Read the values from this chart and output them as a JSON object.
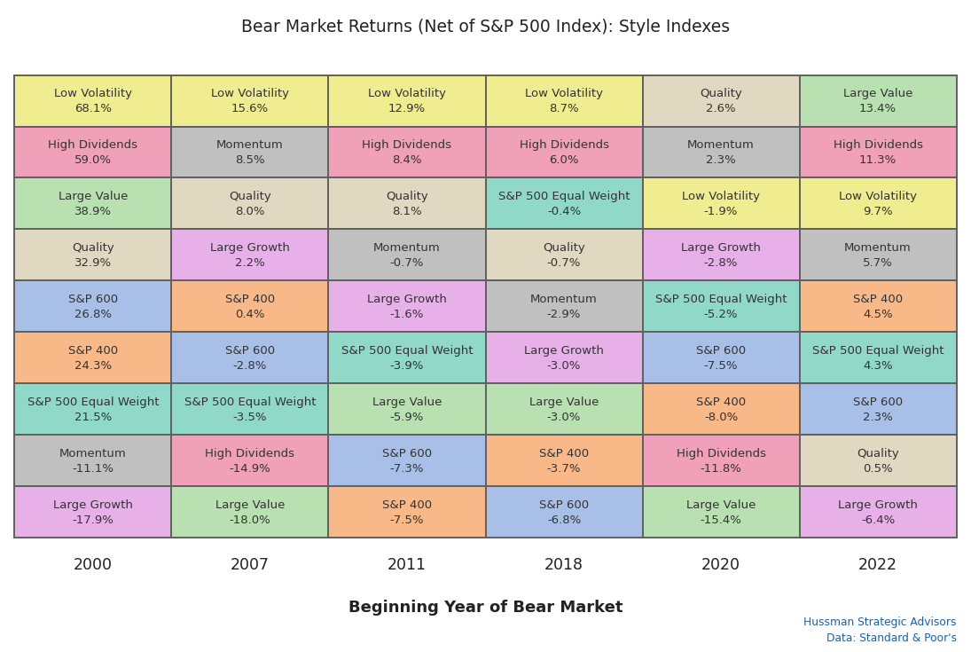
{
  "title": "Bear Market Returns (Net of S&P 500 Index): Style Indexes",
  "xlabel": "Beginning Year of Bear Market",
  "years": [
    "2000",
    "2007",
    "2011",
    "2018",
    "2020",
    "2022"
  ],
  "grid": [
    [
      {
        "label": "Low Volatility",
        "value": "68.1%",
        "color": "#f0ec90"
      },
      {
        "label": "Low Volatility",
        "value": "15.6%",
        "color": "#f0ec90"
      },
      {
        "label": "Low Volatility",
        "value": "12.9%",
        "color": "#f0ec90"
      },
      {
        "label": "Low Volatility",
        "value": "8.7%",
        "color": "#f0ec90"
      },
      {
        "label": "Quality",
        "value": "2.6%",
        "color": "#e0d8c0"
      },
      {
        "label": "Large Value",
        "value": "13.4%",
        "color": "#b8e0b0"
      }
    ],
    [
      {
        "label": "High Dividends",
        "value": "59.0%",
        "color": "#f0a0b8"
      },
      {
        "label": "Momentum",
        "value": "8.5%",
        "color": "#c0c0c0"
      },
      {
        "label": "High Dividends",
        "value": "8.4%",
        "color": "#f0a0b8"
      },
      {
        "label": "High Dividends",
        "value": "6.0%",
        "color": "#f0a0b8"
      },
      {
        "label": "Momentum",
        "value": "2.3%",
        "color": "#c0c0c0"
      },
      {
        "label": "High Dividends",
        "value": "11.3%",
        "color": "#f0a0b8"
      }
    ],
    [
      {
        "label": "Large Value",
        "value": "38.9%",
        "color": "#b8e0b0"
      },
      {
        "label": "Quality",
        "value": "8.0%",
        "color": "#e0d8c0"
      },
      {
        "label": "Quality",
        "value": "8.1%",
        "color": "#e0d8c0"
      },
      {
        "label": "S&P 500 Equal Weight",
        "value": "-0.4%",
        "color": "#90d8c8"
      },
      {
        "label": "Low Volatility",
        "value": "-1.9%",
        "color": "#f0ec90"
      },
      {
        "label": "Low Volatility",
        "value": "9.7%",
        "color": "#f0ec90"
      }
    ],
    [
      {
        "label": "Quality",
        "value": "32.9%",
        "color": "#e0d8c0"
      },
      {
        "label": "Large Growth",
        "value": "2.2%",
        "color": "#e8b0e8"
      },
      {
        "label": "Momentum",
        "value": "-0.7%",
        "color": "#c0c0c0"
      },
      {
        "label": "Quality",
        "value": "-0.7%",
        "color": "#e0d8c0"
      },
      {
        "label": "Large Growth",
        "value": "-2.8%",
        "color": "#e8b0e8"
      },
      {
        "label": "Momentum",
        "value": "5.7%",
        "color": "#c0c0c0"
      }
    ],
    [
      {
        "label": "S&P 600",
        "value": "26.8%",
        "color": "#a8c0e8"
      },
      {
        "label": "S&P 400",
        "value": "0.4%",
        "color": "#f8b888"
      },
      {
        "label": "Large Growth",
        "value": "-1.6%",
        "color": "#e8b0e8"
      },
      {
        "label": "Momentum",
        "value": "-2.9%",
        "color": "#c0c0c0"
      },
      {
        "label": "S&P 500 Equal Weight",
        "value": "-5.2%",
        "color": "#90d8c8"
      },
      {
        "label": "S&P 400",
        "value": "4.5%",
        "color": "#f8b888"
      }
    ],
    [
      {
        "label": "S&P 400",
        "value": "24.3%",
        "color": "#f8b888"
      },
      {
        "label": "S&P 600",
        "value": "-2.8%",
        "color": "#a8c0e8"
      },
      {
        "label": "S&P 500 Equal Weight",
        "value": "-3.9%",
        "color": "#90d8c8"
      },
      {
        "label": "Large Growth",
        "value": "-3.0%",
        "color": "#e8b0e8"
      },
      {
        "label": "S&P 600",
        "value": "-7.5%",
        "color": "#a8c0e8"
      },
      {
        "label": "S&P 500 Equal Weight",
        "value": "4.3%",
        "color": "#90d8c8"
      }
    ],
    [
      {
        "label": "S&P 500 Equal Weight",
        "value": "21.5%",
        "color": "#90d8c8"
      },
      {
        "label": "S&P 500 Equal Weight",
        "value": "-3.5%",
        "color": "#90d8c8"
      },
      {
        "label": "Large Value",
        "value": "-5.9%",
        "color": "#b8e0b0"
      },
      {
        "label": "Large Value",
        "value": "-3.0%",
        "color": "#b8e0b0"
      },
      {
        "label": "S&P 400",
        "value": "-8.0%",
        "color": "#f8b888"
      },
      {
        "label": "S&P 600",
        "value": "2.3%",
        "color": "#a8c0e8"
      }
    ],
    [
      {
        "label": "Momentum",
        "value": "-11.1%",
        "color": "#c0c0c0"
      },
      {
        "label": "High Dividends",
        "value": "-14.9%",
        "color": "#f0a0b8"
      },
      {
        "label": "S&P 600",
        "value": "-7.3%",
        "color": "#a8c0e8"
      },
      {
        "label": "S&P 400",
        "value": "-3.7%",
        "color": "#f8b888"
      },
      {
        "label": "High Dividends",
        "value": "-11.8%",
        "color": "#f0a0b8"
      },
      {
        "label": "Quality",
        "value": "0.5%",
        "color": "#e0d8c0"
      }
    ],
    [
      {
        "label": "Large Growth",
        "value": "-17.9%",
        "color": "#e8b0e8"
      },
      {
        "label": "Large Value",
        "value": "-18.0%",
        "color": "#b8e0b0"
      },
      {
        "label": "S&P 400",
        "value": "-7.5%",
        "color": "#f8b888"
      },
      {
        "label": "S&P 600",
        "value": "-6.8%",
        "color": "#a8c0e8"
      },
      {
        "label": "Large Value",
        "value": "-15.4%",
        "color": "#b8e0b0"
      },
      {
        "label": "Large Growth",
        "value": "-6.4%",
        "color": "#e8b0e8"
      }
    ]
  ],
  "footer_line1": "Hussman Strategic Advisors",
  "footer_line2": "Data: Standard & Poor's",
  "footer_color": "#1a5fb4",
  "background_color": "#ffffff",
  "border_color": "#606060",
  "text_color": "#333333",
  "title_fontsize": 13.5,
  "cell_label_fontsize": 9.5,
  "cell_value_fontsize": 9.5,
  "year_fontsize": 12.5,
  "xlabel_fontsize": 13
}
